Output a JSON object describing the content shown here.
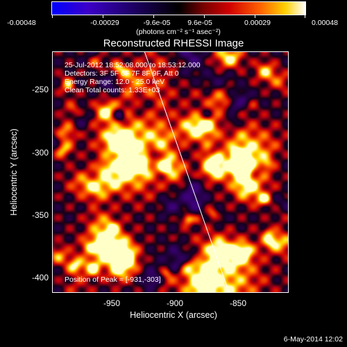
{
  "chart_data": {
    "type": "heatmap",
    "title": "Reconstructed RHESSI Image",
    "xlabel": "Heliocentric X (arcsec)",
    "ylabel": "Heliocentric Y (arcsec)",
    "xlim": [
      -995,
      -808
    ],
    "ylim": [
      -412,
      -222
    ],
    "x_ticks": [
      "-950",
      "-900",
      "-850"
    ],
    "y_ticks": [
      "-250",
      "-300",
      "-350",
      "-400"
    ],
    "colorbar": {
      "ticks": [
        "-0.00048",
        "-0.00029",
        "-9.6e-05",
        "9.6e-05",
        "0.00029",
        "0.00048"
      ],
      "unit": "(photons cm⁻² s⁻¹ asec⁻²)",
      "range": [
        -0.00048,
        0.00048
      ]
    },
    "annotations": {
      "line1": "25-Jul-2012 18:52:08.000 to 18:53:12.000",
      "line2": "Detectors: 3F 5F 6F 7F 8F 9F, Att 0",
      "line3": "Energy Range: 12.0 - 25.0 keV",
      "line4": "Clean    Total counts: 1.33E+03",
      "peak": "Position of Peak = [-931,-303]"
    },
    "limb_line": {
      "x": [
        -922,
        -855
      ],
      "y": [
        -222,
        -412
      ]
    },
    "grid": false,
    "colors": {
      "background": "#000000",
      "text": "#ffffff"
    }
  },
  "footer": {
    "date": "6-May-2014 12:02"
  }
}
